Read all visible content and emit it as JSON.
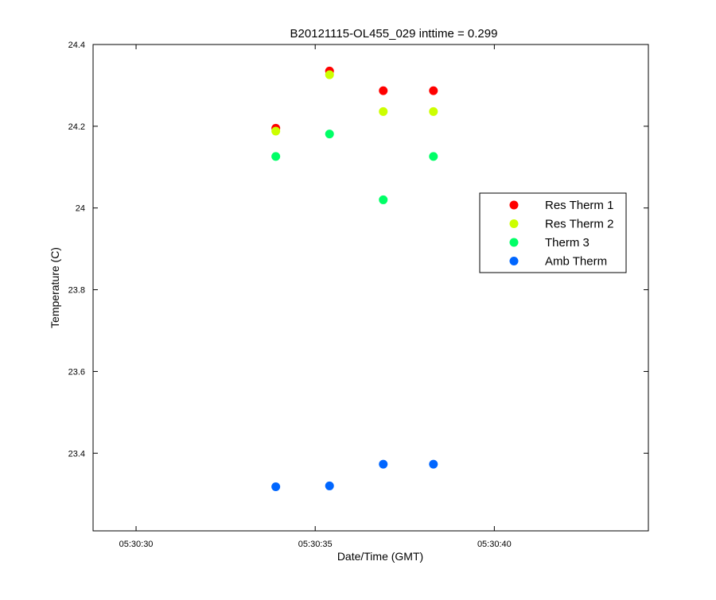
{
  "chart_data": {
    "type": "scatter",
    "title": "B20121115-OL455_029 inttime = 0.299",
    "xlabel": "Date/Time (GMT)",
    "ylabel": "Temperature (C)",
    "x_unit": "time",
    "xlim": [
      "05:30:28.8",
      "05:30:44.3"
    ],
    "ylim": [
      23.21,
      24.4
    ],
    "x_ticks": [
      "05:30:30",
      "05:30:35",
      "05:30:40"
    ],
    "y_ticks": [
      "23.4",
      "23.6",
      "23.8",
      "24",
      "24.2",
      "24.4"
    ],
    "x_tick_values": [
      "05:30:30",
      "05:30:35",
      "05:30:40"
    ],
    "y_tick_values": [
      23.4,
      23.6,
      23.8,
      24.0,
      24.2,
      24.4
    ],
    "grid": false,
    "legend_position": "right",
    "x": [
      "05:30:33.9",
      "05:30:35.4",
      "05:30:36.9",
      "05:30:38.3"
    ],
    "series": [
      {
        "name": "Res Therm 1",
        "color": "#ff0000",
        "values": [
          24.195,
          24.335,
          24.287,
          24.287
        ]
      },
      {
        "name": "Res Therm 2",
        "color": "#ccff00",
        "values": [
          24.188,
          24.326,
          24.236,
          24.236
        ]
      },
      {
        "name": "Therm 3",
        "color": "#00ff66",
        "values": [
          24.126,
          24.181,
          24.02,
          24.126
        ]
      },
      {
        "name": "Amb Therm",
        "color": "#0066ff",
        "values": [
          23.318,
          23.32,
          23.373,
          23.373
        ]
      }
    ]
  }
}
